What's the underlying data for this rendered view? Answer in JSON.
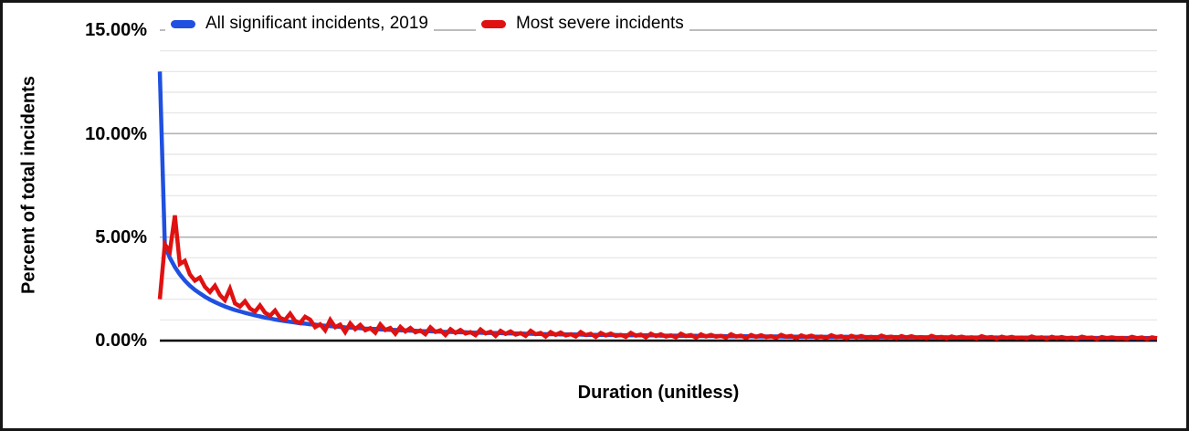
{
  "figure": {
    "y_axis_title": "Percent of total incidents",
    "x_axis_title": "Duration (unitless)",
    "y_tick_labels": [
      "15.00%",
      "10.00%",
      "5.00%",
      "0.00%"
    ]
  },
  "legend": {
    "items": [
      {
        "label": "All significant incidents, 2019",
        "color": "#2050e0"
      },
      {
        "label": "Most severe incidents",
        "color": "#e01111"
      }
    ]
  },
  "chart_data": {
    "type": "line",
    "title": "",
    "xlabel": "Duration (unitless)",
    "ylabel": "Percent of total incidents",
    "x_start": 1,
    "x_step": 1,
    "x_count": 200,
    "ylim": [
      0,
      15
    ],
    "y_unit": "percent",
    "y_major_gridlines_percent": [
      0,
      5,
      10,
      15
    ],
    "y_minor_gridline_step_percent": 1,
    "grid": true,
    "legend_position": "top-inside-center",
    "colors": {
      "grid_major": "#b3b3b3",
      "grid_minor": "#e4e4e4",
      "axis": "#000000"
    },
    "series": [
      {
        "name": "All significant incidents, 2019",
        "color": "#2050e0",
        "values": [
          13.0,
          4.6,
          4.0,
          3.55,
          3.2,
          2.9,
          2.65,
          2.45,
          2.28,
          2.12,
          1.98,
          1.86,
          1.75,
          1.65,
          1.56,
          1.48,
          1.41,
          1.34,
          1.28,
          1.22,
          1.17,
          1.11,
          1.07,
          1.02,
          0.98,
          0.94,
          0.91,
          0.88,
          0.84,
          0.82,
          0.79,
          0.77,
          0.74,
          0.72,
          0.7,
          0.68,
          0.66,
          0.64,
          0.63,
          0.61,
          0.6,
          0.58,
          0.57,
          0.56,
          0.54,
          0.53,
          0.52,
          0.51,
          0.5,
          0.49,
          0.48,
          0.47,
          0.46,
          0.45,
          0.45,
          0.44,
          0.43,
          0.42,
          0.42,
          0.41,
          0.4,
          0.4,
          0.39,
          0.38,
          0.38,
          0.37,
          0.37,
          0.36,
          0.36,
          0.35,
          0.35,
          0.34,
          0.34,
          0.33,
          0.33,
          0.32,
          0.32,
          0.31,
          0.31,
          0.31,
          0.3,
          0.3,
          0.3,
          0.29,
          0.29,
          0.28,
          0.28,
          0.28,
          0.28,
          0.27,
          0.27,
          0.27,
          0.26,
          0.26,
          0.26,
          0.26,
          0.25,
          0.25,
          0.25,
          0.25,
          0.24,
          0.24,
          0.24,
          0.24,
          0.23,
          0.23,
          0.23,
          0.23,
          0.22,
          0.22,
          0.22,
          0.22,
          0.22,
          0.21,
          0.21,
          0.21,
          0.21,
          0.21,
          0.21,
          0.2,
          0.2,
          0.2,
          0.2,
          0.2,
          0.2,
          0.19,
          0.19,
          0.19,
          0.19,
          0.19,
          0.19,
          0.19,
          0.18,
          0.18,
          0.18,
          0.18,
          0.18,
          0.18,
          0.18,
          0.18,
          0.17,
          0.17,
          0.17,
          0.17,
          0.17,
          0.17,
          0.17,
          0.17,
          0.16,
          0.16,
          0.16,
          0.16,
          0.16,
          0.16,
          0.16,
          0.16,
          0.16,
          0.16,
          0.15,
          0.15,
          0.15,
          0.15,
          0.15,
          0.15,
          0.15,
          0.15,
          0.15,
          0.15,
          0.14,
          0.14,
          0.14,
          0.14,
          0.14,
          0.14,
          0.14,
          0.14,
          0.14,
          0.14,
          0.14,
          0.14,
          0.14,
          0.13,
          0.13,
          0.13,
          0.13,
          0.13,
          0.13,
          0.13,
          0.13,
          0.13,
          0.13,
          0.13,
          0.13,
          0.13,
          0.13,
          0.12,
          0.12,
          0.12,
          0.12,
          0.12
        ]
      },
      {
        "name": "Most severe incidents",
        "color": "#e01111",
        "values": [
          2.0,
          4.65,
          4.3,
          6.05,
          3.7,
          3.85,
          3.2,
          2.9,
          3.05,
          2.6,
          2.35,
          2.65,
          2.2,
          1.95,
          2.5,
          1.8,
          1.65,
          1.9,
          1.55,
          1.4,
          1.7,
          1.35,
          1.2,
          1.45,
          1.1,
          1.0,
          1.3,
          0.95,
          0.85,
          1.15,
          1.01,
          0.65,
          0.79,
          0.5,
          1.0,
          0.65,
          0.77,
          0.41,
          0.83,
          0.55,
          0.76,
          0.5,
          0.6,
          0.38,
          0.78,
          0.51,
          0.61,
          0.33,
          0.66,
          0.44,
          0.61,
          0.4,
          0.49,
          0.31,
          0.64,
          0.42,
          0.5,
          0.27,
          0.55,
          0.37,
          0.51,
          0.34,
          0.41,
          0.26,
          0.54,
          0.35,
          0.43,
          0.23,
          0.47,
          0.32,
          0.44,
          0.29,
          0.36,
          0.23,
          0.47,
          0.31,
          0.37,
          0.2,
          0.41,
          0.28,
          0.39,
          0.25,
          0.31,
          0.2,
          0.41,
          0.27,
          0.33,
          0.18,
          0.37,
          0.25,
          0.34,
          0.23,
          0.28,
          0.18,
          0.37,
          0.24,
          0.29,
          0.16,
          0.33,
          0.22,
          0.31,
          0.2,
          0.25,
          0.16,
          0.33,
          0.22,
          0.27,
          0.14,
          0.3,
          0.2,
          0.28,
          0.19,
          0.23,
          0.15,
          0.31,
          0.2,
          0.24,
          0.13,
          0.27,
          0.18,
          0.26,
          0.17,
          0.21,
          0.14,
          0.28,
          0.19,
          0.23,
          0.12,
          0.25,
          0.17,
          0.24,
          0.16,
          0.2,
          0.13,
          0.26,
          0.17,
          0.21,
          0.11,
          0.23,
          0.16,
          0.22,
          0.15,
          0.18,
          0.12,
          0.24,
          0.16,
          0.19,
          0.11,
          0.22,
          0.15,
          0.21,
          0.14,
          0.17,
          0.11,
          0.23,
          0.15,
          0.18,
          0.1,
          0.2,
          0.14,
          0.19,
          0.13,
          0.16,
          0.1,
          0.21,
          0.14,
          0.17,
          0.09,
          0.19,
          0.13,
          0.18,
          0.12,
          0.15,
          0.1,
          0.2,
          0.13,
          0.16,
          0.09,
          0.18,
          0.12,
          0.17,
          0.11,
          0.14,
          0.09,
          0.19,
          0.13,
          0.15,
          0.08,
          0.17,
          0.12,
          0.16,
          0.11,
          0.13,
          0.09,
          0.18,
          0.12,
          0.15,
          0.08,
          0.16,
          0.11
        ]
      }
    ]
  }
}
